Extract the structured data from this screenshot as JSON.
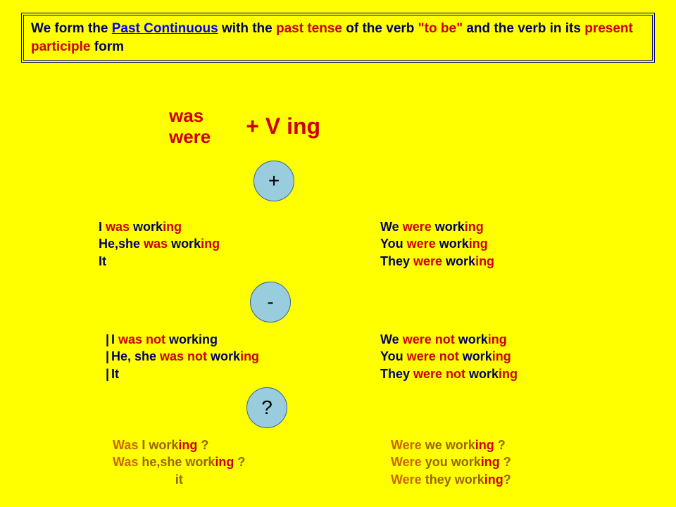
{
  "rule": {
    "part1": "We form the ",
    "link": "Past Continuous",
    "part2": " with the ",
    "red1": "past tense",
    "part3": " of the verb ",
    "quote": "\"to be\"",
    "part4": " and the verb in its ",
    "red2": "present participle",
    "part5": " form"
  },
  "formula": {
    "was": "was",
    "were": "were",
    "ving": "+   V  ing"
  },
  "circles": {
    "plus": "+",
    "minus": "-",
    "quest": "?"
  },
  "positive": {
    "left": {
      "l1a": "I ",
      "l1b": "was",
      "l1c": " work",
      "l1d": "ing",
      "l2a": "He,she ",
      "l2b": "was",
      "l2c": " work",
      "l2d": "ing",
      "l3": "It"
    },
    "right": {
      "l1a": "We ",
      "l1b": "were",
      "l1c": " work",
      "l1d": "ing",
      "l2a": "  You ",
      "l2b": "were",
      "l2c": " work",
      "l2d": "ing",
      "l3a": "They ",
      "l3b": "were",
      "l3c": " work",
      "l3d": "ing"
    }
  },
  "negative": {
    "left": {
      "l1a": "I ",
      "l1b": "was not",
      "l1c": " working",
      "l2a": "He, she ",
      "l2b": "was not",
      "l2c": " work",
      "l2d": "ing",
      "l3": "It"
    },
    "right": {
      "l1a": "We ",
      "l1b": "were not",
      "l1c": " work",
      "l1d": "ing",
      "l2a": "  You ",
      "l2b": "were not",
      "l2c": " work",
      "l2d": "ing",
      "l3a": "They ",
      "l3b": "were not",
      "l3c": " work",
      "l3d": "ing"
    }
  },
  "question": {
    "left": {
      "l1a": "Was",
      "l1b": " I ",
      "l1c": "work",
      "l1d": "ing",
      "l1e": " ?",
      "l2a": "Was",
      "l2b": " he,she ",
      "l2c": "work",
      "l2d": "ing",
      "l2e": " ?",
      "l3": "it"
    },
    "right": {
      "l1a": "Were",
      "l1b": " we ",
      "l1c": "work",
      "l1d": "ing",
      "l1e": " ?",
      "l2a": "  Were",
      "l2b": " you ",
      "l2c": "work",
      "l2d": "ing",
      "l2e": " ?",
      "l3a": "Were",
      "l3b": " they ",
      "l3c": "work",
      "l3d": "ing",
      "l3e": "?"
    }
  }
}
